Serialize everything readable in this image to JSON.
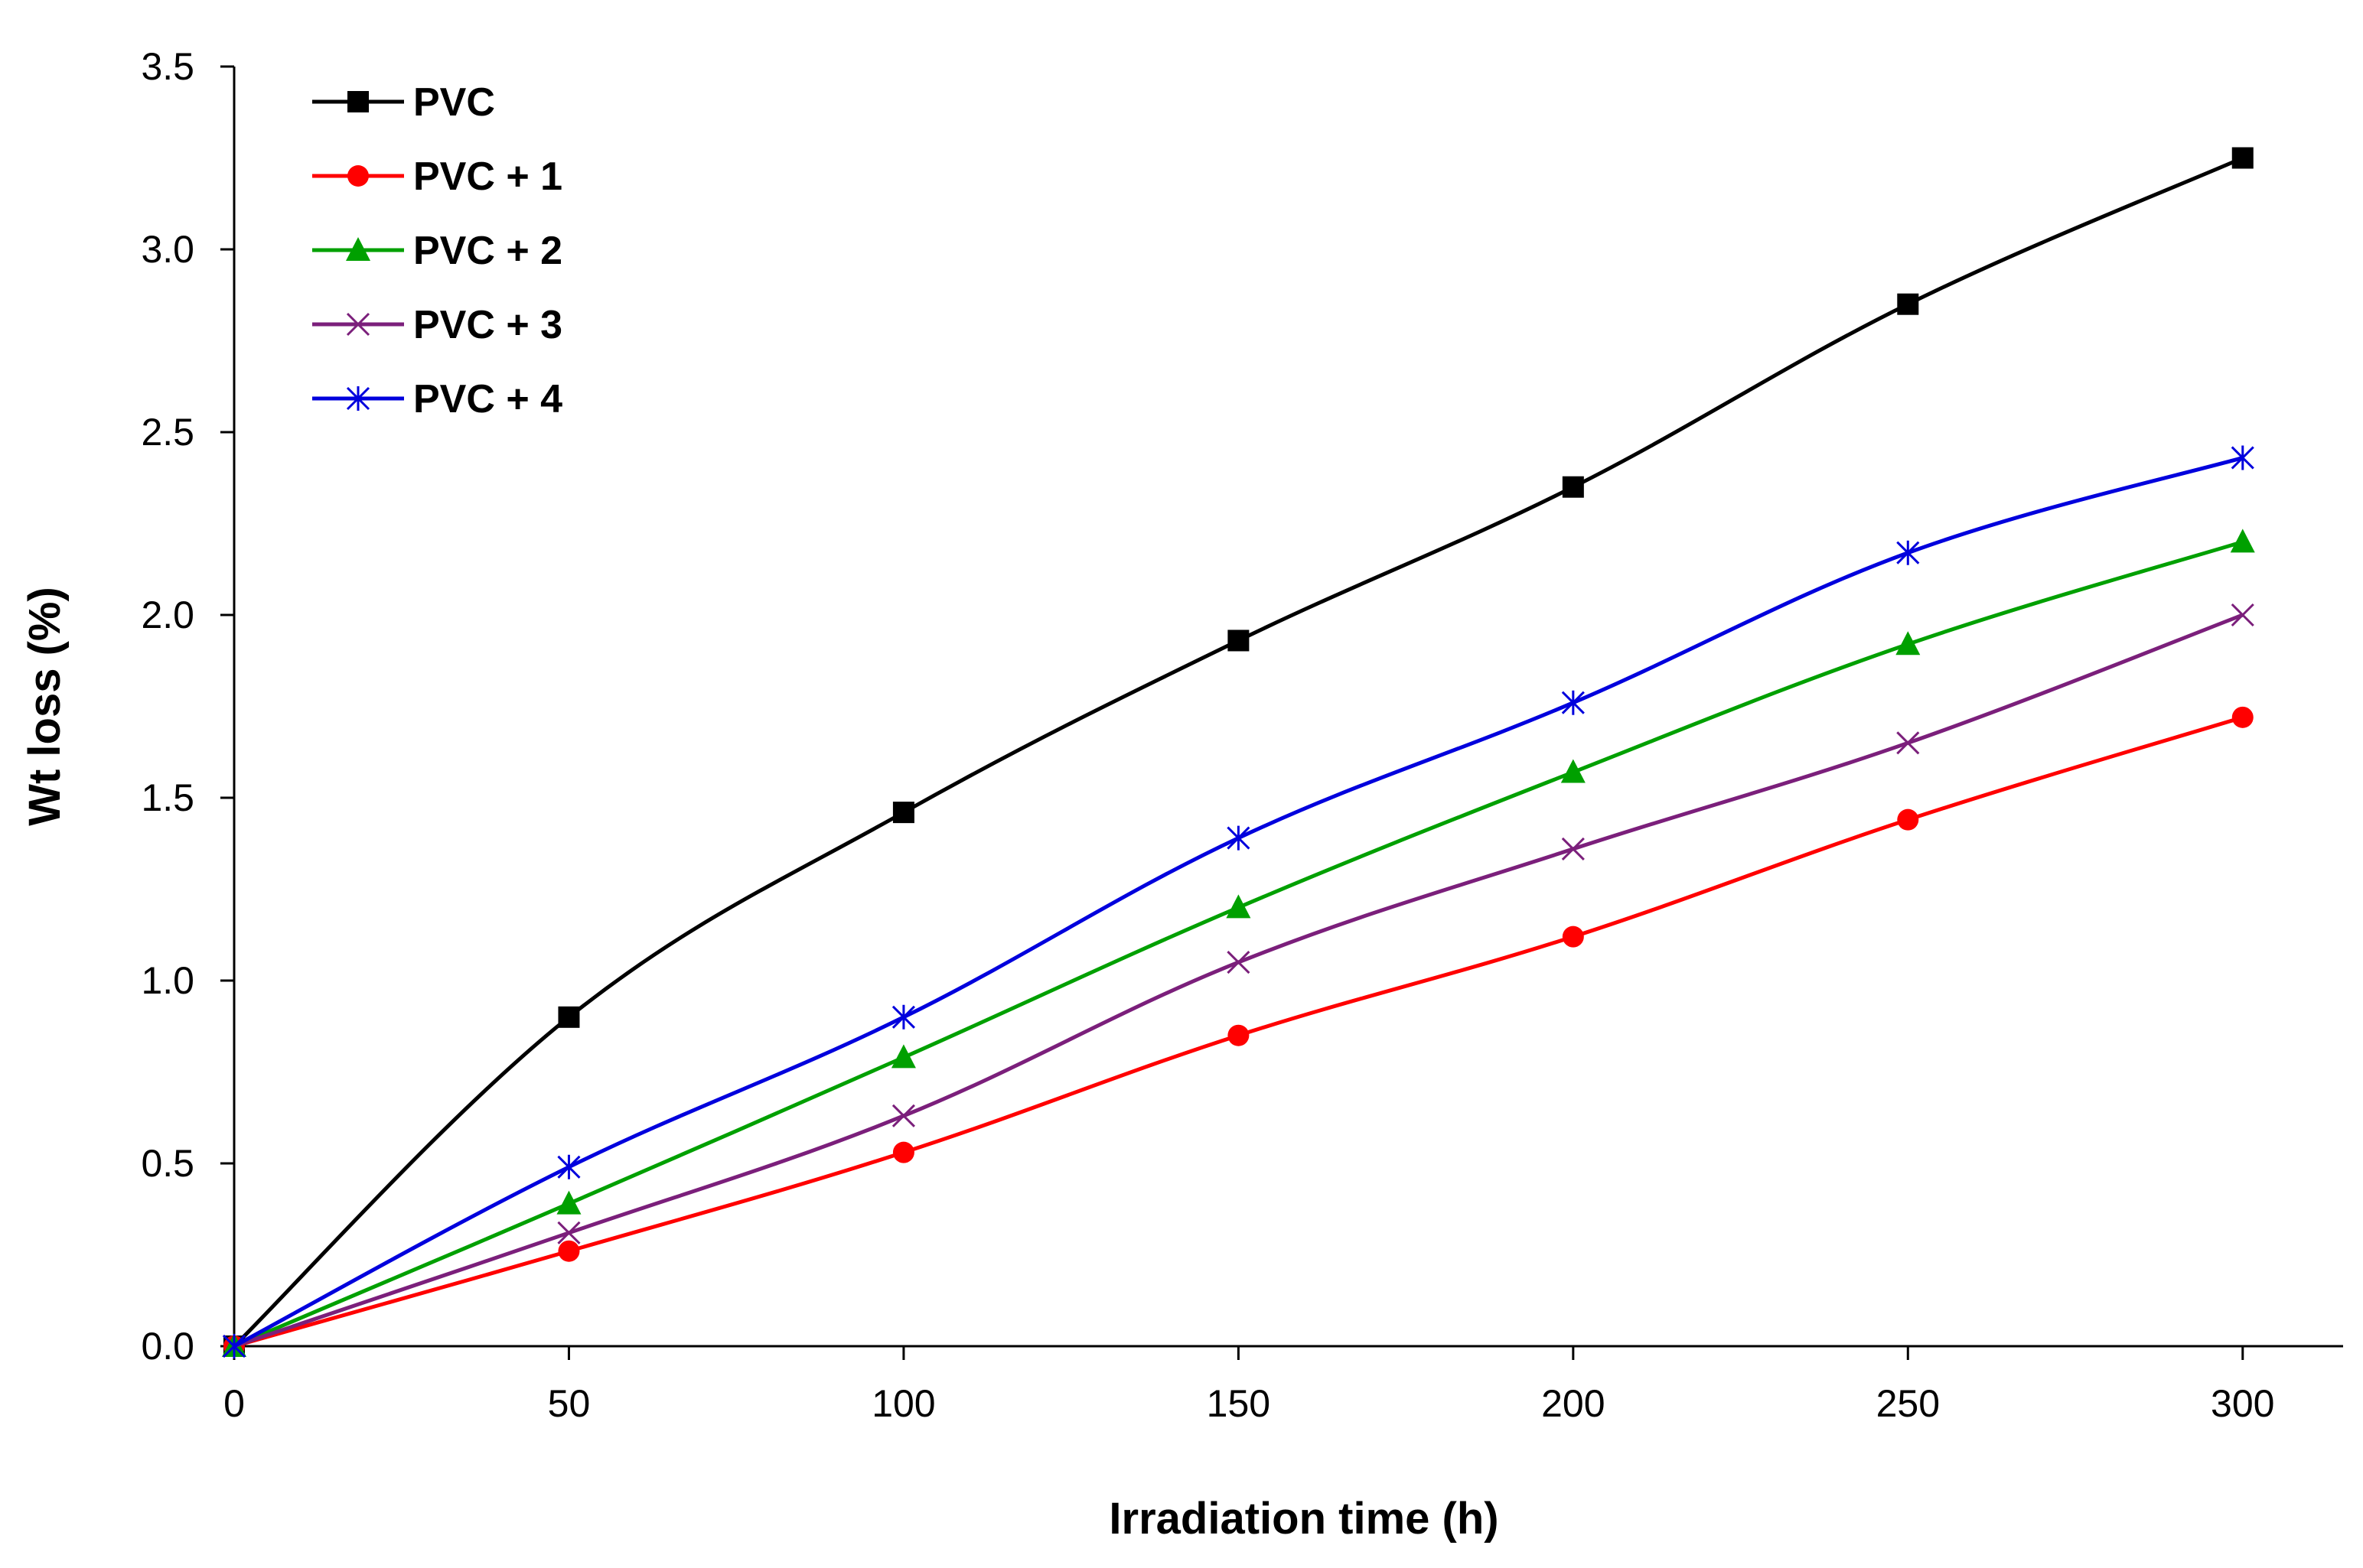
{
  "chart_data": {
    "type": "line",
    "title": "",
    "xlabel": "Irradiation time (h)",
    "ylabel": "Wt loss (%)",
    "xlim": [
      0,
      315
    ],
    "ylim": [
      0,
      3.5
    ],
    "xticks": [
      0,
      50,
      100,
      150,
      200,
      250,
      300
    ],
    "yticks": [
      0.0,
      0.5,
      1.0,
      1.5,
      2.0,
      2.5,
      3.0,
      3.5
    ],
    "xtick_labels": [
      "0",
      "50",
      "100",
      "150",
      "200",
      "250",
      "300"
    ],
    "ytick_labels": [
      "0.0",
      "0.5",
      "1.0",
      "1.5",
      "2.0",
      "2.5",
      "3.0",
      "3.5"
    ],
    "grid": false,
    "legend_position": "top-left",
    "x": [
      0,
      50,
      100,
      150,
      200,
      250,
      300
    ],
    "series": [
      {
        "name": "PVC",
        "color": "#000000",
        "marker": "square",
        "values": [
          0,
          0.9,
          1.46,
          1.93,
          2.35,
          2.85,
          3.25
        ]
      },
      {
        "name": "PVC + 1",
        "color": "#ff0000",
        "marker": "circle",
        "values": [
          0,
          0.26,
          0.53,
          0.85,
          1.12,
          1.44,
          1.72
        ]
      },
      {
        "name": "PVC + 2",
        "color": "#00a000",
        "marker": "triangle",
        "values": [
          0,
          0.39,
          0.79,
          1.2,
          1.57,
          1.92,
          2.2
        ]
      },
      {
        "name": "PVC + 3",
        "color": "#7b1f7b",
        "marker": "x",
        "values": [
          0,
          0.31,
          0.63,
          1.05,
          1.36,
          1.65,
          2.0
        ]
      },
      {
        "name": "PVC + 4",
        "color": "#0000dd",
        "marker": "star",
        "values": [
          0,
          0.49,
          0.9,
          1.39,
          1.76,
          2.17,
          2.43
        ]
      }
    ]
  }
}
